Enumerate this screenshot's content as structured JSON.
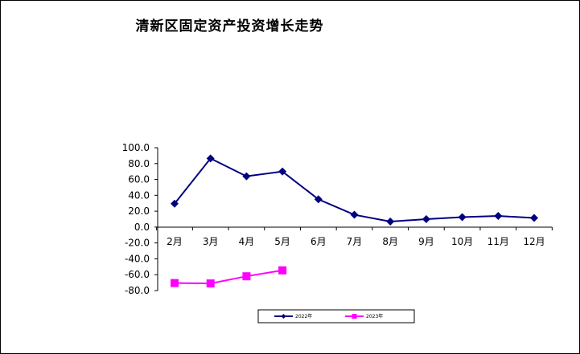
{
  "chart_data": {
    "type": "line",
    "title": "清新区固定资产投资增长走势",
    "categories": [
      "2月",
      "3月",
      "4月",
      "5月",
      "6月",
      "7月",
      "8月",
      "9月",
      "10月",
      "11月",
      "12月"
    ],
    "y_ticks": [
      "100.0",
      "80.0",
      "60.0",
      "40.0",
      "20.0",
      "0.0",
      "-20.0",
      "-40.0",
      "-60.0",
      "-80.0"
    ],
    "ylim": [
      -80,
      100
    ],
    "grid": false,
    "legend_position": "bottom",
    "series": [
      {
        "name": "2022年",
        "color": "#000080",
        "marker": "diamond",
        "values": [
          29.5,
          86.5,
          64.0,
          70.0,
          35.0,
          15.5,
          7.0,
          10.0,
          12.5,
          14.0,
          11.5
        ]
      },
      {
        "name": "2023年",
        "color": "#FF00FF",
        "marker": "square",
        "values": [
          -70.5,
          -71.0,
          -62.0,
          -54.5,
          null,
          null,
          null,
          null,
          null,
          null,
          null
        ]
      }
    ]
  }
}
